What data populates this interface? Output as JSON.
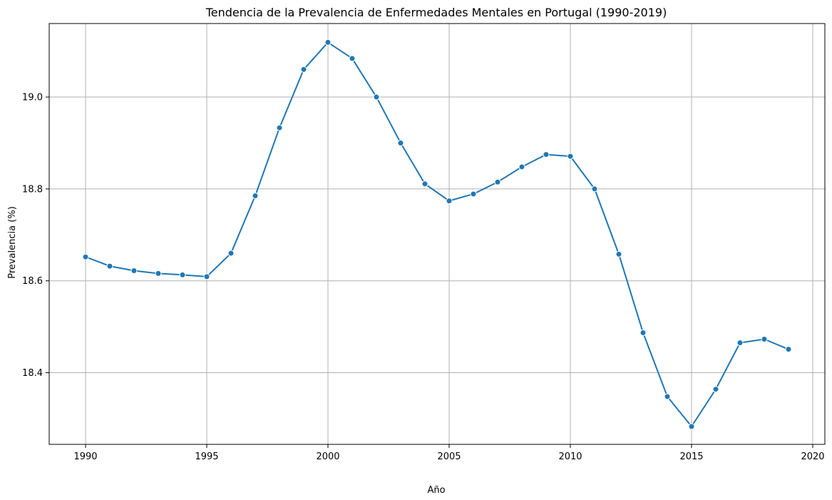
{
  "chart_data": {
    "type": "line",
    "title": "Tendencia de la Prevalencia de Enfermedades Mentales en Portugal (1990-2019)",
    "xlabel": "Año",
    "ylabel": "Prevalencia (%)",
    "xlim": [
      1988.5,
      2020.5
    ],
    "ylim": [
      18.244,
      19.16
    ],
    "xticks": [
      1990,
      1995,
      2000,
      2005,
      2010,
      2015,
      2020
    ],
    "yticks": [
      18.4,
      18.6,
      18.8,
      19.0
    ],
    "ytick_labels": [
      "18.4",
      "18.6",
      "18.8",
      "19.0"
    ],
    "grid": true,
    "legend": "none",
    "line_color": "#1f77b4",
    "series": [
      {
        "x": [
          1990,
          1991,
          1992,
          1993,
          1994,
          1995,
          1996,
          1997,
          1998,
          1999,
          2000,
          2001,
          2002,
          2003,
          2004,
          2005,
          2006,
          2007,
          2008,
          2009,
          2010,
          2011,
          2012,
          2013,
          2014,
          2015,
          2016,
          2017,
          2018,
          2019
        ],
        "y": [
          18.652,
          18.632,
          18.622,
          18.616,
          18.613,
          18.609,
          18.66,
          18.785,
          18.933,
          19.06,
          19.119,
          19.084,
          19.0,
          18.9,
          18.811,
          18.774,
          18.789,
          18.815,
          18.848,
          18.875,
          18.871,
          18.8,
          18.658,
          18.487,
          18.348,
          18.283,
          18.364,
          18.465,
          18.473,
          18.451
        ]
      }
    ]
  }
}
